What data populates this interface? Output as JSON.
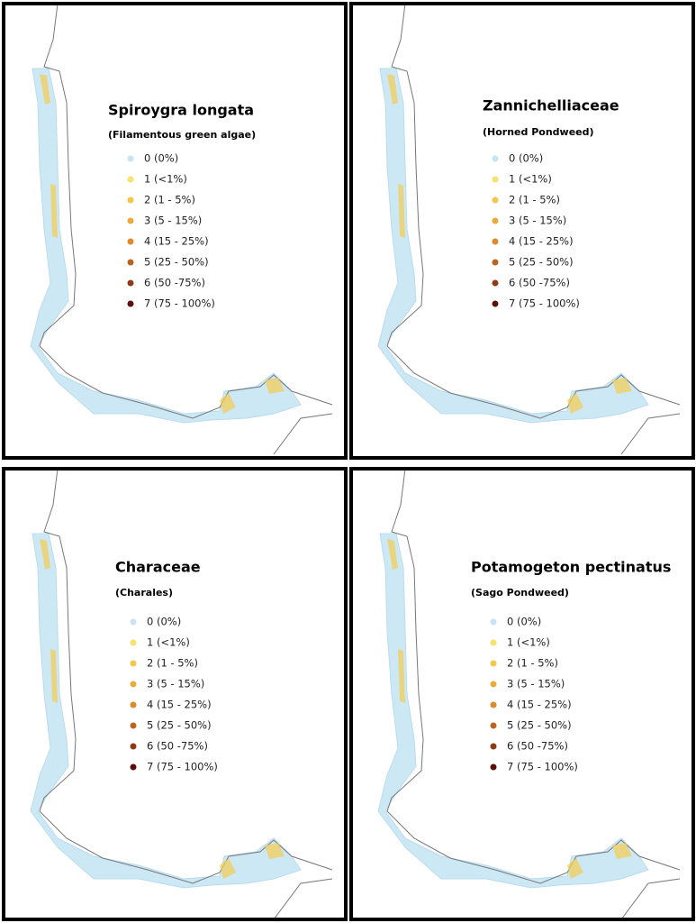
{
  "panels": [
    {
      "title": "Spiroygra longata",
      "subtitle": "(Filamentous green algae)"
    },
    {
      "title": "Zannichelliaceae",
      "subtitle": "(Horned Pondweed)"
    },
    {
      "title": "Characeae",
      "subtitle": "(Charales)"
    },
    {
      "title": "Potamogeton pectinatus",
      "subtitle": "(Sago Pondweed)"
    }
  ],
  "legend": [
    {
      "label": "0 (0%)",
      "color": "#c6e4f2"
    },
    {
      "label": "1 (<1%)",
      "color": "#f7e26b"
    },
    {
      "label": "2 (1 - 5%)",
      "color": "#f4c64a"
    },
    {
      "label": "3 (5 - 15%)",
      "color": "#eda93a"
    },
    {
      "label": "4 (15 - 25%)",
      "color": "#dc8a2b"
    },
    {
      "label": "5 (25 - 50%)",
      "color": "#bd6320"
    },
    {
      "label": "6 (50 -75%)",
      "color": "#8e3a14"
    },
    {
      "label": "7 (75 - 100%)",
      "color": "#5c0f07"
    }
  ]
}
